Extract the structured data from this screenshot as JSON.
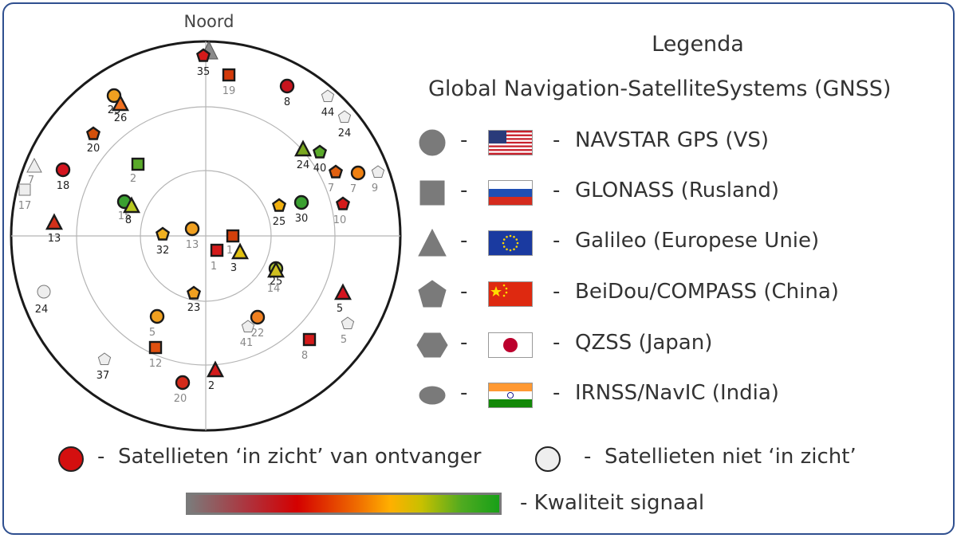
{
  "plot": {
    "north_label": "Noord",
    "satellites": [
      {
        "id": "g35",
        "shape": "pentagon",
        "color": "#d41a1a",
        "label": "35",
        "az": 0,
        "el": 90,
        "lc": "dark"
      },
      {
        "id": "r19",
        "shape": "square",
        "color": "#d43a0a",
        "label": "19",
        "az": 12,
        "el": 90,
        "lc": "gray"
      },
      {
        "id": "g8a",
        "shape": "circle",
        "color": "#c8141e",
        "label": "8",
        "az": 30,
        "el": 90,
        "lc": "dark"
      },
      {
        "id": "w44",
        "shape": "pentagon",
        "color": "#f0f0f0",
        "label": "44",
        "az": 40,
        "el": 90,
        "lc": "dark"
      },
      {
        "id": "w24a",
        "shape": "pentagon",
        "color": "#f0f0f0",
        "label": "24",
        "az": 45,
        "el": 90,
        "lc": "dark"
      }
    ]
  },
  "legend": {
    "title": "Legenda",
    "subtitle": "Global Navigation-SatelliteSystems (GNSS)",
    "systems": [
      {
        "shape": "circle",
        "flag": "us",
        "label": "NAVSTAR GPS (VS)"
      },
      {
        "shape": "square",
        "flag": "ru",
        "label": "GLONASS (Rusland)"
      },
      {
        "shape": "triangle",
        "flag": "eu",
        "label": "Galileo (Europese Unie)"
      },
      {
        "shape": "pentagon",
        "flag": "cn",
        "label": "BeiDou/COMPASS (China)"
      },
      {
        "shape": "hexagon",
        "flag": "jp",
        "label": "QZSS (Japan)"
      },
      {
        "shape": "ellipse",
        "flag": "in",
        "label": "IRNSS/NavIC (India)"
      }
    ],
    "dash": "-",
    "in_view": "Satellieten ‘in zicht’ van ontvanger",
    "not_in_view": "Satellieten niet ‘in zicht’",
    "signal_quality": "Kwaliteit signaal",
    "colors": {
      "in_view": "#d40f0f",
      "not_in_view": "#eeeeee",
      "symbol_gray": "#7a7a7a",
      "frame": "#2f4f8f"
    }
  }
}
